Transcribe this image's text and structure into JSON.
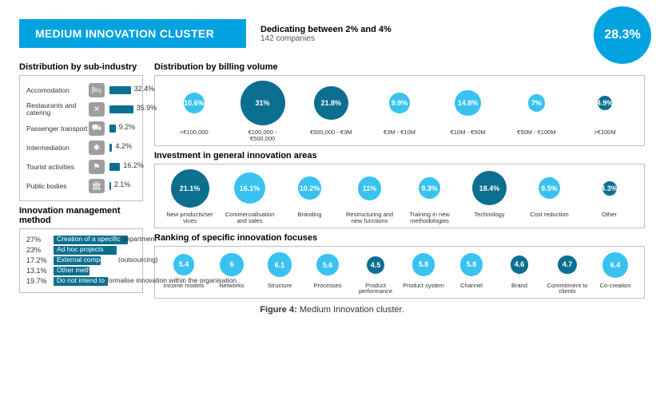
{
  "header": {
    "title": "MEDIUM INNOVATION CLUSTER",
    "dedicating": "Dedicating between 2% and 4%",
    "companies": "142 companies",
    "percent": "28.3%",
    "banner_color": "#00a3e0"
  },
  "sub_industry": {
    "title": "Distribution by sub-industry",
    "bar_color": "#0d6f90",
    "icon_bg": "#9e9e9e",
    "max_pct": 40,
    "rows": [
      {
        "label": "Accomodation",
        "icon": "🛏",
        "pct": 32.4
      },
      {
        "label": "Restaurants and catering",
        "icon": "✕",
        "pct": 35.9
      },
      {
        "label": "Passenger transport",
        "icon": "⛟",
        "pct": 9.2
      },
      {
        "label": "Intermediation",
        "icon": "✱",
        "pct": 4.2
      },
      {
        "label": "Tourist activities",
        "icon": "⚑",
        "pct": 16.2
      },
      {
        "label": "Public bodies",
        "icon": "🏛",
        "pct": 2.1
      }
    ]
  },
  "management": {
    "title": "Innovation management method",
    "bar_color": "#0d6f90",
    "max_pct": 30,
    "rows": [
      {
        "pct": "27%",
        "w": 27,
        "overlay": "Creation of a specific",
        "tail": " department"
      },
      {
        "pct": "23%",
        "w": 23,
        "overlay": "Ad hoc projects",
        "tail": ""
      },
      {
        "pct": "17.2%",
        "w": 17.2,
        "overlay": "External companies",
        "tail": " (outsourcing)"
      },
      {
        "pct": "13.1%",
        "w": 13.1,
        "overlay": "Other methods",
        "tail": ""
      },
      {
        "pct": "19.7%",
        "w": 19.7,
        "overlay": "Do not intend to",
        "tail": " formalise innovation within the organisation"
      }
    ]
  },
  "billing": {
    "title": "Distribution by billing volume",
    "colors": {
      "dark": "#0d6f90",
      "light": "#39c2f0"
    },
    "base_scale": 1.8,
    "items": [
      {
        "val": "10.6%",
        "size": 10.6,
        "label": "<€100,000",
        "tone": "light"
      },
      {
        "val": "31%",
        "size": 31,
        "label": "€100,000 - €500,000",
        "tone": "dark"
      },
      {
        "val": "21.8%",
        "size": 21.8,
        "label": "€500,000 - €3M",
        "tone": "dark"
      },
      {
        "val": "9.9%",
        "size": 9.9,
        "label": "€3M - €10M",
        "tone": "light"
      },
      {
        "val": "14.8%",
        "size": 14.8,
        "label": "€10M - €50M",
        "tone": "light"
      },
      {
        "val": "7%",
        "size": 7,
        "label": "€50M - €100M",
        "tone": "light"
      },
      {
        "val": "4.9%",
        "size": 4.9,
        "label": ">€100M",
        "tone": "dark"
      }
    ]
  },
  "investment": {
    "title": "Investment in general innovation areas",
    "colors": {
      "dark": "#0d6f90",
      "light": "#39c2f0"
    },
    "base_scale": 2.3,
    "items": [
      {
        "val": "21.1%",
        "size": 21.1,
        "label": "New products/ser vices",
        "tone": "dark"
      },
      {
        "val": "16.1%",
        "size": 16.1,
        "label": "Commercialisation and sales",
        "tone": "light"
      },
      {
        "val": "10.2%",
        "size": 10.2,
        "label": "Branding",
        "tone": "light"
      },
      {
        "val": "11%",
        "size": 11,
        "label": "Restructuring and new functions",
        "tone": "light"
      },
      {
        "val": "9.3%",
        "size": 9.3,
        "label": "Training in new methodologies",
        "tone": "light"
      },
      {
        "val": "18.4%",
        "size": 18.4,
        "label": "Technology",
        "tone": "dark"
      },
      {
        "val": "9.5%",
        "size": 9.5,
        "label": "Cost reduction",
        "tone": "light"
      },
      {
        "val": "4.3%",
        "size": 4.3,
        "label": "Other",
        "tone": "dark"
      }
    ]
  },
  "ranking": {
    "title": "Ranking of specific innovation focuses",
    "colors": {
      "dark": "#0d6f90",
      "light": "#39c2f0"
    },
    "base_scale": 5.0,
    "items": [
      {
        "val": "5.4",
        "size": 5.4,
        "label": "Income models",
        "tone": "light"
      },
      {
        "val": "6",
        "size": 6,
        "label": "Networks",
        "tone": "light"
      },
      {
        "val": "6.1",
        "size": 6.1,
        "label": "Structure",
        "tone": "light"
      },
      {
        "val": "5.6",
        "size": 5.6,
        "label": "Processes",
        "tone": "light"
      },
      {
        "val": "4.5",
        "size": 4.5,
        "label": "Product performance",
        "tone": "dark"
      },
      {
        "val": "5.8",
        "size": 5.8,
        "label": "Product system",
        "tone": "light"
      },
      {
        "val": "5.8",
        "size": 5.8,
        "label": "Channel",
        "tone": "light"
      },
      {
        "val": "4.6",
        "size": 4.6,
        "label": "Brand",
        "tone": "dark"
      },
      {
        "val": "4.7",
        "size": 4.7,
        "label": "Commitment to clients",
        "tone": "dark"
      },
      {
        "val": "6.4",
        "size": 6.4,
        "label": "Co-creation",
        "tone": "light"
      }
    ]
  },
  "caption": {
    "label": "Figure 4:",
    "text": " Medium Innovation cluster."
  }
}
